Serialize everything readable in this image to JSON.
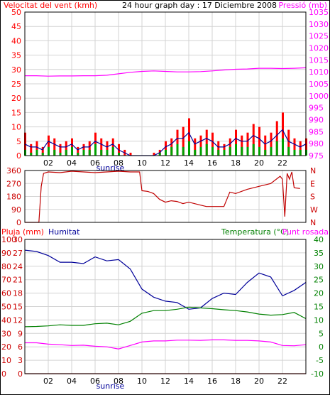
{
  "colors": {
    "background": "#FFFFFF",
    "grid": "#D3D3D3",
    "wind": "#FF0000",
    "gust": "#00A000",
    "pressure": "#FF00FF",
    "direction": "#C00000",
    "humidity": "#000099",
    "temperature": "#008000",
    "dewpoint": "#FF00FF",
    "rain": "#C00000",
    "sunrise": "#000099"
  },
  "chart_data": [
    {
      "type": "line",
      "title": "24 hour graph day : 17 Diciembre 2008",
      "ylabel": "Velocitat del vent (kmh)",
      "ylabel2": "Pressió (mb)",
      "ylim": [
        0,
        50
      ],
      "ylim2": [
        975,
        1035
      ],
      "y_ticks": [
        0,
        5,
        10,
        15,
        20,
        25,
        30,
        35,
        40,
        45,
        50
      ],
      "y2_ticks": [
        975,
        980,
        985,
        990,
        995,
        1000,
        1005,
        1010,
        1015,
        1020,
        1025,
        1030,
        1035
      ],
      "x_ticks": [
        "02",
        "04",
        "06",
        "08",
        "10",
        "12",
        "14",
        "16",
        "18",
        "20",
        "22"
      ],
      "xlim": [
        0,
        24
      ],
      "grid": true,
      "annotation": "sunrise",
      "sunrise_hour": 7.3,
      "series": [
        {
          "name": "Pressió (mb)",
          "axis": "right",
          "x": [
            0,
            1,
            2,
            3,
            4,
            5,
            6,
            7,
            8,
            9,
            10,
            11,
            12,
            13,
            14,
            15,
            16,
            17,
            18,
            19,
            20,
            21,
            22,
            23,
            24
          ],
          "values": [
            1008.4,
            1008.4,
            1008.2,
            1008.3,
            1008.3,
            1008.4,
            1008.4,
            1008.6,
            1009.2,
            1009.8,
            1010.2,
            1010.4,
            1010.2,
            1010.0,
            1010.0,
            1010.1,
            1010.4,
            1010.8,
            1011.1,
            1011.2,
            1011.5,
            1011.5,
            1011.4,
            1011.5,
            1011.7
          ]
        },
        {
          "axis": "left",
          "x": [
            0,
            0.5,
            1,
            1.5,
            2,
            2.5,
            3,
            3.5,
            4,
            4.5,
            5,
            5.5,
            6,
            6.5,
            7,
            7.5,
            8,
            8.5,
            9,
            9.5,
            10,
            10.5,
            11,
            11.5,
            12,
            12.5,
            13,
            13.5,
            14,
            14.5,
            15,
            15.5,
            16,
            16.5,
            17,
            17.5,
            18,
            18.5,
            19,
            19.5,
            20,
            20.5,
            21,
            21.5,
            22,
            22.5,
            23,
            23.5,
            24
          ],
          "values": [
            8,
            4,
            5,
            3,
            7,
            6,
            4,
            5,
            6,
            3,
            4,
            5,
            8,
            6,
            5,
            6,
            4,
            2,
            1,
            0,
            0,
            0,
            1,
            2,
            5,
            6,
            9,
            10,
            13,
            6,
            7,
            9,
            8,
            5,
            4,
            6,
            9,
            7,
            8,
            11,
            10,
            7,
            8,
            12,
            15,
            9,
            6,
            5,
            6
          ]
        },
        {
          "axis": "left",
          "x": [
            0,
            0.5,
            1,
            1.5,
            2,
            2.5,
            3,
            3.5,
            4,
            4.5,
            5,
            5.5,
            6,
            6.5,
            7,
            7.5,
            8,
            8.5,
            9,
            9.5,
            10,
            10.5,
            11,
            11.5,
            12,
            12.5,
            13,
            13.5,
            14,
            14.5,
            15,
            15.5,
            16,
            16.5,
            17,
            17.5,
            18,
            18.5,
            19,
            19.5,
            20,
            20.5,
            21,
            21.5,
            22,
            22.5,
            23,
            23.5,
            24
          ],
          "values": [
            2,
            1,
            2,
            1,
            3,
            2,
            1,
            2,
            3,
            1,
            2,
            2,
            4,
            2,
            2,
            3,
            1,
            0,
            0,
            0,
            0,
            0,
            0,
            1,
            2,
            3,
            4,
            3,
            5,
            2,
            3,
            4,
            3,
            2,
            2,
            3,
            4,
            3,
            3,
            4,
            3,
            2,
            3,
            5,
            6,
            3,
            2,
            2,
            2
          ]
        },
        {
          "axis": "left",
          "x": [
            0,
            0.5,
            1,
            1.5,
            2,
            2.5,
            3,
            3.5,
            4,
            4.5,
            5,
            5.5,
            6,
            6.5,
            7,
            7.5,
            8,
            8.5,
            9,
            9.5,
            10,
            10.5,
            11,
            11.5,
            12,
            12.5,
            13,
            13.5,
            14,
            14.5,
            15,
            15.5,
            16,
            16.5,
            17,
            17.5,
            18,
            18.5,
            19,
            19.5,
            20,
            20.5,
            21,
            21.5,
            22,
            22.5,
            23,
            23.5,
            24
          ],
          "values": [
            4,
            3,
            3,
            2,
            5,
            4,
            3,
            3,
            4,
            2,
            3,
            3,
            5,
            4,
            3,
            4,
            2,
            1,
            0,
            0,
            0,
            0,
            0,
            1,
            3,
            4,
            6,
            6,
            8,
            4,
            5,
            6,
            5,
            3,
            3,
            4,
            6,
            5,
            5,
            7,
            6,
            4,
            5,
            7,
            9,
            5,
            4,
            3,
            4
          ]
        }
      ]
    },
    {
      "type": "line",
      "ylim": [
        0,
        360
      ],
      "y_ticks": [
        0,
        90,
        180,
        270,
        360
      ],
      "y2_ticks": [
        "N",
        "W",
        "S",
        "E",
        "N"
      ],
      "xlim": [
        0,
        24
      ],
      "grid": true,
      "series": [
        {
          "x": [
            0,
            1.2,
            1.4,
            1.6,
            2,
            3,
            4,
            5,
            6,
            7,
            8,
            9,
            9.8,
            10,
            10.5,
            11,
            11.5,
            12,
            12.5,
            13,
            13.5,
            14,
            15,
            15.5,
            16,
            17,
            17.5,
            18,
            19,
            20,
            20.5,
            21,
            21.8,
            22,
            22.2,
            22.4,
            22.6,
            22.8,
            23,
            23.5
          ],
          "values": [
            0,
            0,
            250,
            340,
            350,
            345,
            355,
            350,
            345,
            350,
            355,
            350,
            350,
            220,
            215,
            200,
            160,
            140,
            150,
            145,
            130,
            140,
            120,
            110,
            110,
            110,
            210,
            200,
            230,
            250,
            260,
            270,
            320,
            300,
            40,
            340,
            300,
            350,
            240,
            235
          ]
        }
      ]
    },
    {
      "type": "line",
      "ylabel": "Pluja (mm)",
      "ylabel_humidity": "Humitat",
      "ylabel2": "Temperatura (°C)",
      "ylabel2_extra": "Punt rosada",
      "ylim": [
        0,
        30
      ],
      "y_ticks": [
        0,
        3,
        6,
        9,
        12,
        15,
        18,
        21,
        24,
        27,
        30
      ],
      "y_humidity_ticks": [
        0,
        10,
        20,
        30,
        40,
        50,
        60,
        70,
        80,
        90,
        100
      ],
      "ylim2": [
        -10,
        40
      ],
      "y2_ticks": [
        -10,
        -5,
        0,
        5,
        10,
        15,
        20,
        25,
        30,
        35,
        40
      ],
      "x_ticks": [
        "02",
        "04",
        "06",
        "08",
        "10",
        "12",
        "14",
        "16",
        "18",
        "20",
        "22"
      ],
      "xlim": [
        0,
        24
      ],
      "grid": true,
      "annotation": "sunrise",
      "series": [
        {
          "name": "Humitat",
          "axis": "humidity",
          "x": [
            0,
            1,
            2,
            3,
            4,
            5,
            6,
            7,
            8,
            9,
            10,
            11,
            12,
            13,
            14,
            15,
            16,
            17,
            18,
            19,
            20,
            21,
            22,
            23,
            24
          ],
          "values": [
            92,
            91,
            88,
            83,
            83,
            82,
            87,
            84,
            85,
            78,
            63,
            57,
            54,
            53,
            48,
            49,
            56,
            60,
            59,
            68,
            75,
            72,
            58,
            62,
            68
          ]
        },
        {
          "name": "Temperatura (°C)",
          "axis": "right",
          "x": [
            0,
            1,
            2,
            3,
            4,
            5,
            6,
            7,
            8,
            9,
            10,
            11,
            12,
            13,
            14,
            15,
            16,
            17,
            18,
            19,
            20,
            21,
            22,
            23,
            24
          ],
          "values": [
            7.5,
            7.6,
            7.8,
            8.2,
            8.0,
            8.0,
            8.6,
            8.8,
            8.2,
            9.5,
            12.5,
            13.5,
            13.5,
            14.0,
            14.8,
            14.5,
            14.2,
            13.8,
            13.5,
            13.0,
            12.2,
            11.8,
            12.0,
            12.8,
            10.5
          ]
        },
        {
          "name": "Punt rosada",
          "axis": "right",
          "x": [
            0,
            1,
            2,
            3,
            4,
            5,
            6,
            7,
            8,
            9,
            10,
            11,
            12,
            13,
            14,
            15,
            16,
            17,
            18,
            19,
            20,
            21,
            22,
            23,
            24
          ],
          "values": [
            1.5,
            1.5,
            1.0,
            0.8,
            0.5,
            0.6,
            0.2,
            0.0,
            -0.8,
            0.5,
            1.8,
            2.2,
            2.2,
            2.5,
            2.5,
            2.4,
            2.6,
            2.6,
            2.4,
            2.4,
            2.2,
            1.8,
            0.5,
            0.4,
            0.8
          ]
        },
        {
          "name": "Pluja (mm)",
          "axis": "left",
          "x": [
            0,
            24
          ],
          "values": [
            0,
            0
          ]
        }
      ]
    }
  ]
}
